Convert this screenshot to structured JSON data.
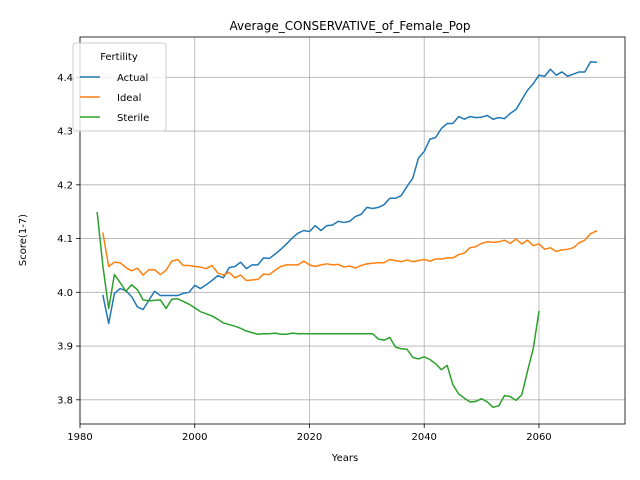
{
  "chart_data": {
    "type": "line",
    "title": "Average_CONSERVATIVE_of_Female_Pop",
    "xlabel": "Years",
    "ylabel": "Score(1-7)",
    "xlim": [
      1980,
      2075
    ],
    "ylim": [
      3.755,
      4.475
    ],
    "x_ticks": [
      1980,
      2000,
      2020,
      2040,
      2060
    ],
    "y_ticks": [
      3.8,
      3.9,
      4.0,
      4.1,
      4.2,
      4.3,
      4.4
    ],
    "x_tick_labels": [
      "1980",
      "2000",
      "2020",
      "2040",
      "2060"
    ],
    "y_tick_labels": [
      "3.8",
      "3.9",
      "4.0",
      "4.1",
      "4.2",
      "4.3",
      "4.4"
    ],
    "grid": true,
    "legend": {
      "title": "Fertility",
      "placement": "top-left"
    },
    "series": [
      {
        "name": "Actual",
        "color": "#1f77b4",
        "x": [
          1984,
          1985,
          1986,
          1987,
          1988,
          1989,
          1990,
          1991,
          1992,
          1993,
          1994,
          1995,
          1996,
          1997,
          1998,
          1999,
          2000,
          2001,
          2002,
          2003,
          2004,
          2005,
          2006,
          2007,
          2008,
          2009,
          2010,
          2011,
          2012,
          2013,
          2014,
          2015,
          2016,
          2017,
          2018,
          2019,
          2020,
          2021,
          2022,
          2023,
          2024,
          2025,
          2026,
          2027,
          2028,
          2029,
          2030,
          2031,
          2032,
          2033,
          2034,
          2035,
          2036,
          2037,
          2038,
          2039,
          2040,
          2041,
          2042,
          2043,
          2044,
          2045,
          2046,
          2047,
          2048,
          2049,
          2050,
          2051,
          2052,
          2053,
          2054,
          2055,
          2056,
          2057,
          2058,
          2059,
          2060,
          2061,
          2062,
          2063,
          2064,
          2065,
          2066,
          2067,
          2068,
          2069,
          2070
        ],
        "values": [
          3.994,
          3.942,
          3.998,
          4.007,
          4.003,
          3.992,
          3.973,
          3.968,
          3.985,
          4.002,
          3.994,
          3.994,
          3.994,
          3.994,
          3.998,
          4.0,
          4.013,
          4.007,
          4.014,
          4.022,
          4.031,
          4.027,
          4.046,
          4.048,
          4.056,
          4.044,
          4.051,
          4.051,
          4.064,
          4.063,
          4.071,
          4.08,
          4.09,
          4.101,
          4.11,
          4.115,
          4.113,
          4.124,
          4.115,
          4.124,
          4.125,
          4.132,
          4.13,
          4.132,
          4.141,
          4.145,
          4.158,
          4.156,
          4.158,
          4.163,
          4.175,
          4.175,
          4.18,
          4.197,
          4.212,
          4.25,
          4.262,
          4.285,
          4.288,
          4.305,
          4.314,
          4.314,
          4.327,
          4.322,
          4.327,
          4.325,
          4.326,
          4.329,
          4.322,
          4.325,
          4.323,
          4.333,
          4.34,
          4.358,
          4.376,
          4.388,
          4.404,
          4.402,
          4.415,
          4.404,
          4.41,
          4.402,
          4.406,
          4.41,
          4.41,
          4.429,
          4.428
        ]
      },
      {
        "name": "Ideal",
        "color": "#ff7f0e",
        "x": [
          1984,
          1985,
          1986,
          1987,
          1988,
          1989,
          1990,
          1991,
          1992,
          1993,
          1994,
          1995,
          1996,
          1997,
          1998,
          1999,
          2000,
          2001,
          2002,
          2003,
          2004,
          2005,
          2006,
          2007,
          2008,
          2009,
          2010,
          2011,
          2012,
          2013,
          2014,
          2015,
          2016,
          2017,
          2018,
          2019,
          2020,
          2021,
          2022,
          2023,
          2024,
          2025,
          2026,
          2027,
          2028,
          2029,
          2030,
          2031,
          2032,
          2033,
          2034,
          2035,
          2036,
          2037,
          2038,
          2039,
          2040,
          2041,
          2042,
          2043,
          2044,
          2045,
          2046,
          2047,
          2048,
          2049,
          2050,
          2051,
          2052,
          2053,
          2054,
          2055,
          2056,
          2057,
          2058,
          2059,
          2060,
          2061,
          2062,
          2063,
          2064,
          2065,
          2066,
          2067,
          2068,
          2069,
          2070
        ],
        "values": [
          4.11,
          4.048,
          4.056,
          4.055,
          4.046,
          4.04,
          4.045,
          4.032,
          4.042,
          4.042,
          4.033,
          4.041,
          4.058,
          4.061,
          4.05,
          4.05,
          4.048,
          4.047,
          4.044,
          4.05,
          4.036,
          4.032,
          4.037,
          4.027,
          4.032,
          4.022,
          4.023,
          4.024,
          4.034,
          4.033,
          4.041,
          4.048,
          4.051,
          4.051,
          4.051,
          4.058,
          4.051,
          4.048,
          4.051,
          4.053,
          4.051,
          4.052,
          4.047,
          4.049,
          4.045,
          4.05,
          4.053,
          4.054,
          4.055,
          4.055,
          4.061,
          4.059,
          4.057,
          4.06,
          4.057,
          4.059,
          4.061,
          4.058,
          4.062,
          4.062,
          4.064,
          4.064,
          4.07,
          4.073,
          4.083,
          4.085,
          4.091,
          4.094,
          4.093,
          4.094,
          4.097,
          4.091,
          4.099,
          4.09,
          4.097,
          4.087,
          4.09,
          4.08,
          4.083,
          4.076,
          4.079,
          4.08,
          4.083,
          4.092,
          4.097,
          4.109,
          4.114
        ]
      },
      {
        "name": "Sterile",
        "color": "#2ca02c",
        "x": [
          1983,
          1984,
          1985,
          1986,
          1987,
          1988,
          1989,
          1990,
          1991,
          1992,
          1993,
          1994,
          1995,
          1996,
          1997,
          1998,
          1999,
          2000,
          2001,
          2002,
          2003,
          2004,
          2005,
          2006,
          2007,
          2008,
          2009,
          2010,
          2011,
          2012,
          2013,
          2014,
          2015,
          2016,
          2017,
          2018,
          2019,
          2020,
          2021,
          2022,
          2023,
          2024,
          2025,
          2026,
          2027,
          2028,
          2029,
          2030,
          2031,
          2032,
          2033,
          2034,
          2035,
          2036,
          2037,
          2038,
          2039,
          2040,
          2041,
          2042,
          2043,
          2044,
          2045,
          2046,
          2047,
          2048,
          2049,
          2050,
          2051,
          2052,
          2053,
          2054,
          2055,
          2056,
          2057,
          2058,
          2059,
          2060
        ],
        "values": [
          4.148,
          4.048,
          3.97,
          4.033,
          4.018,
          4.002,
          4.014,
          4.005,
          3.986,
          3.984,
          3.985,
          3.986,
          3.97,
          3.987,
          3.988,
          3.983,
          3.978,
          3.971,
          3.964,
          3.96,
          3.956,
          3.95,
          3.943,
          3.94,
          3.937,
          3.933,
          3.928,
          3.925,
          3.922,
          3.923,
          3.923,
          3.924,
          3.922,
          3.922,
          3.924,
          3.923,
          3.923,
          3.923,
          3.923,
          3.923,
          3.923,
          3.923,
          3.923,
          3.923,
          3.923,
          3.923,
          3.923,
          3.923,
          3.923,
          3.913,
          3.911,
          3.916,
          3.898,
          3.895,
          3.894,
          3.879,
          3.876,
          3.88,
          3.875,
          3.867,
          3.856,
          3.864,
          3.828,
          3.811,
          3.803,
          3.796,
          3.797,
          3.802,
          3.796,
          3.786,
          3.789,
          3.808,
          3.806,
          3.799,
          3.809,
          3.853,
          3.895,
          3.964
        ]
      }
    ]
  }
}
